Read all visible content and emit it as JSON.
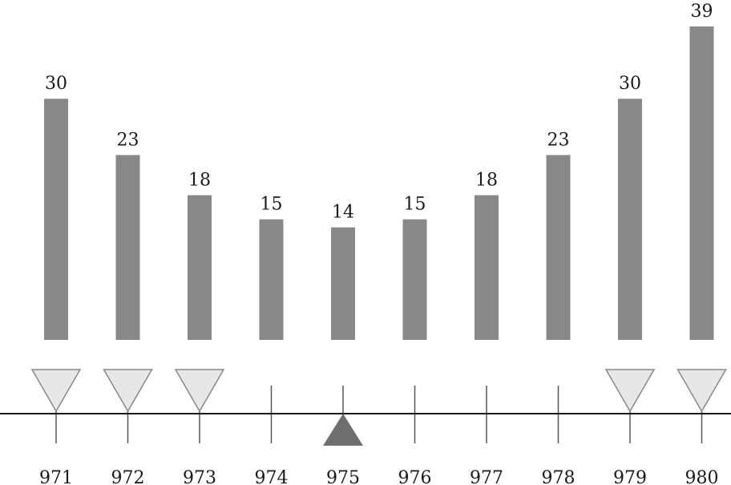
{
  "chart_data": {
    "type": "bar",
    "categories": [
      "971",
      "972",
      "973",
      "974",
      "975",
      "976",
      "977",
      "978",
      "979",
      "980"
    ],
    "values": [
      30,
      23,
      18,
      15,
      14,
      15,
      18,
      23,
      30,
      39
    ],
    "value_labels": [
      "30",
      "23",
      "18",
      "15",
      "14",
      "15",
      "18",
      "23",
      "30",
      "39"
    ],
    "markers": [
      "down",
      "down",
      "down",
      "none",
      "up",
      "none",
      "none",
      "none",
      "down",
      "down"
    ],
    "title": "",
    "xlabel": "",
    "ylabel": "",
    "ylim": [
      0,
      39
    ],
    "grid": false,
    "legend": "none"
  },
  "colors": {
    "bar": "#87888a",
    "down_marker_fill": "#e6e7e8",
    "down_marker_stroke": "#87888a",
    "up_marker_fill": "#6d6e70",
    "axis": "#1a1a1a",
    "tick": "#555555"
  }
}
